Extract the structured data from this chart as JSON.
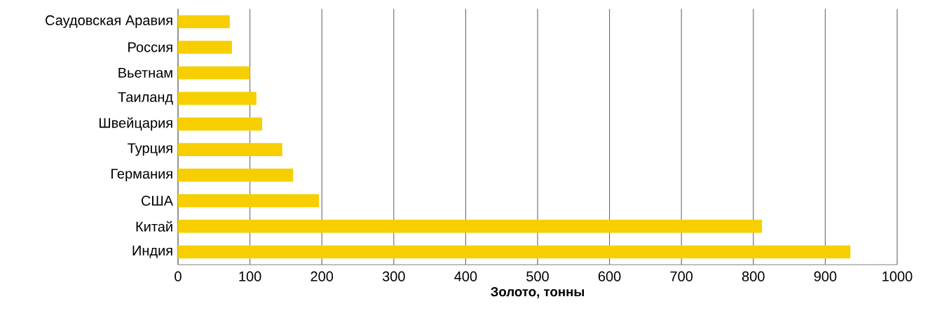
{
  "chart_data": {
    "type": "bar",
    "orientation": "horizontal",
    "xlabel": "Золото, тонны",
    "categories": [
      "Саудовская Аравия",
      "Россия",
      "Вьетнам",
      "Таиланд",
      "Швейцария",
      "Турция",
      "Германия",
      "США",
      "Китай",
      "Индия"
    ],
    "values": [
      72,
      75,
      100,
      109,
      117,
      145,
      160,
      196,
      812,
      935
    ],
    "color": "#f7cf00",
    "xlim": [
      0,
      1000
    ],
    "xticks": [
      0,
      100,
      200,
      300,
      400,
      500,
      600,
      700,
      800,
      900,
      1000
    ],
    "grid": "x"
  }
}
